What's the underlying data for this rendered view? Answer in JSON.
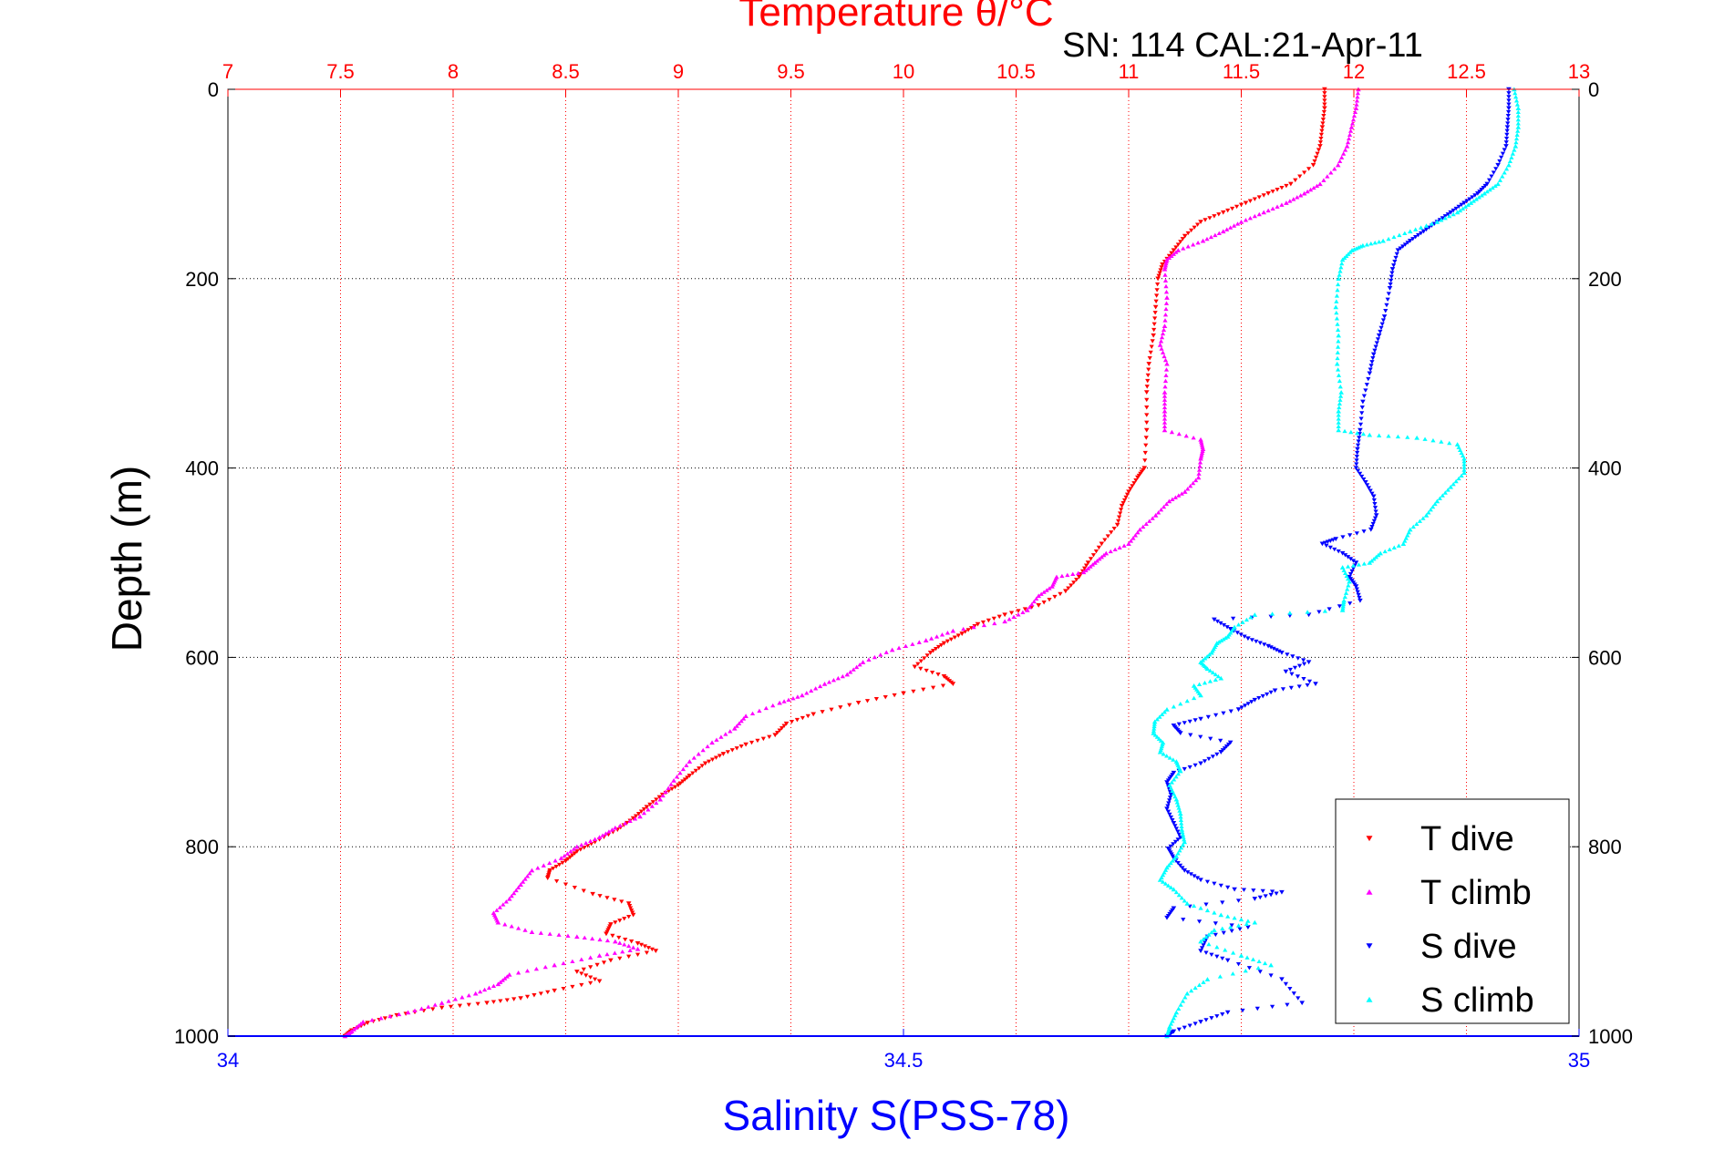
{
  "chart_data": {
    "type": "scatter",
    "title": "Temperature θ/°C",
    "subtitle": "SN: 114  CAL:21-Apr-11",
    "xlabel_top": "Temperature θ/°C",
    "xlabel_bottom": "Salinity S(PSS-78)",
    "ylabel": "Depth (m)",
    "top_axis": {
      "lim": [
        7,
        13
      ],
      "ticks": [
        "7",
        "7.5",
        "8",
        "8.5",
        "9",
        "9.5",
        "10",
        "10.5",
        "11",
        "11.5",
        "12",
        "12.5",
        "13"
      ],
      "color": "#ff0000"
    },
    "bottom_axis": {
      "lim": [
        34,
        35
      ],
      "ticks": [
        "34",
        "34.5",
        "35"
      ],
      "color": "#0000ff"
    },
    "y_axis": {
      "lim": [
        0,
        1000
      ],
      "reversed": true,
      "ticks": [
        "0",
        "200",
        "400",
        "600",
        "800",
        "1000"
      ]
    },
    "grid": true,
    "legend_position": "bottom-right",
    "series": [
      {
        "name": "T dive",
        "axis": "temperature",
        "color": "#ff0000",
        "marker": "triangle-down",
        "points": [
          [
            11.87,
            0
          ],
          [
            11.87,
            20
          ],
          [
            11.86,
            40
          ],
          [
            11.85,
            60
          ],
          [
            11.82,
            80
          ],
          [
            11.72,
            100
          ],
          [
            11.62,
            110
          ],
          [
            11.52,
            120
          ],
          [
            11.42,
            130
          ],
          [
            11.32,
            140
          ],
          [
            11.25,
            155
          ],
          [
            11.2,
            170
          ],
          [
            11.15,
            185
          ],
          [
            11.13,
            200
          ],
          [
            11.12,
            230
          ],
          [
            11.11,
            260
          ],
          [
            11.09,
            290
          ],
          [
            11.08,
            320
          ],
          [
            11.08,
            360
          ],
          [
            11.07,
            400
          ],
          [
            11.04,
            410
          ],
          [
            11.0,
            425
          ],
          [
            10.97,
            440
          ],
          [
            10.95,
            460
          ],
          [
            10.88,
            480
          ],
          [
            10.82,
            500
          ],
          [
            10.78,
            515
          ],
          [
            10.72,
            530
          ],
          [
            10.6,
            545
          ],
          [
            10.45,
            555
          ],
          [
            10.33,
            565
          ],
          [
            10.26,
            575
          ],
          [
            10.18,
            585
          ],
          [
            10.12,
            595
          ],
          [
            10.05,
            610
          ],
          [
            10.18,
            620
          ],
          [
            10.22,
            628
          ],
          [
            10.0,
            638
          ],
          [
            9.8,
            648
          ],
          [
            9.6,
            660
          ],
          [
            9.48,
            670
          ],
          [
            9.43,
            682
          ],
          [
            9.3,
            692
          ],
          [
            9.2,
            702
          ],
          [
            9.12,
            712
          ],
          [
            9.05,
            725
          ],
          [
            9.0,
            735
          ],
          [
            8.93,
            745
          ],
          [
            8.86,
            758
          ],
          [
            8.8,
            770
          ],
          [
            8.73,
            782
          ],
          [
            8.63,
            795
          ],
          [
            8.55,
            805
          ],
          [
            8.5,
            815
          ],
          [
            8.43,
            825
          ],
          [
            8.42,
            833
          ],
          [
            8.62,
            850
          ],
          [
            8.78,
            860
          ],
          [
            8.8,
            872
          ],
          [
            8.7,
            882
          ],
          [
            8.68,
            892
          ],
          [
            8.82,
            902
          ],
          [
            8.9,
            910
          ],
          [
            8.7,
            920
          ],
          [
            8.55,
            932
          ],
          [
            8.65,
            942
          ],
          [
            8.45,
            952
          ],
          [
            8.3,
            960
          ],
          [
            8.15,
            965
          ],
          [
            7.95,
            970
          ],
          [
            7.75,
            978
          ],
          [
            7.62,
            986
          ],
          [
            7.55,
            994
          ],
          [
            7.52,
            1000
          ]
        ]
      },
      {
        "name": "T climb",
        "axis": "temperature",
        "color": "#ff00ff",
        "marker": "triangle-up",
        "points": [
          [
            12.02,
            0
          ],
          [
            12.01,
            20
          ],
          [
            11.99,
            40
          ],
          [
            11.97,
            60
          ],
          [
            11.93,
            80
          ],
          [
            11.85,
            100
          ],
          [
            11.78,
            110
          ],
          [
            11.7,
            120
          ],
          [
            11.6,
            130
          ],
          [
            11.5,
            140
          ],
          [
            11.42,
            150
          ],
          [
            11.33,
            160
          ],
          [
            11.22,
            170
          ],
          [
            11.17,
            180
          ],
          [
            11.16,
            190
          ],
          [
            11.17,
            220
          ],
          [
            11.16,
            250
          ],
          [
            11.14,
            270
          ],
          [
            11.17,
            290
          ],
          [
            11.16,
            320
          ],
          [
            11.16,
            340
          ],
          [
            11.16,
            360
          ],
          [
            11.32,
            370
          ],
          [
            11.33,
            380
          ],
          [
            11.32,
            390
          ],
          [
            11.31,
            410
          ],
          [
            11.25,
            425
          ],
          [
            11.18,
            435
          ],
          [
            11.12,
            450
          ],
          [
            11.05,
            465
          ],
          [
            11.0,
            480
          ],
          [
            10.9,
            490
          ],
          [
            10.85,
            500
          ],
          [
            10.8,
            510
          ],
          [
            10.68,
            515
          ],
          [
            10.66,
            525
          ],
          [
            10.6,
            535
          ],
          [
            10.55,
            550
          ],
          [
            10.45,
            562
          ],
          [
            10.22,
            572
          ],
          [
            10.1,
            582
          ],
          [
            9.95,
            592
          ],
          [
            9.82,
            605
          ],
          [
            9.75,
            618
          ],
          [
            9.65,
            628
          ],
          [
            9.55,
            640
          ],
          [
            9.45,
            648
          ],
          [
            9.3,
            662
          ],
          [
            9.25,
            675
          ],
          [
            9.15,
            690
          ],
          [
            9.05,
            710
          ],
          [
            8.98,
            730
          ],
          [
            8.92,
            750
          ],
          [
            8.83,
            768
          ],
          [
            8.72,
            780
          ],
          [
            8.65,
            790
          ],
          [
            8.55,
            800
          ],
          [
            8.48,
            812
          ],
          [
            8.35,
            825
          ],
          [
            8.3,
            840
          ],
          [
            8.25,
            855
          ],
          [
            8.18,
            870
          ],
          [
            8.2,
            880
          ],
          [
            8.35,
            890
          ],
          [
            8.55,
            895
          ],
          [
            8.72,
            900
          ],
          [
            8.82,
            908
          ],
          [
            8.65,
            915
          ],
          [
            8.45,
            925
          ],
          [
            8.25,
            935
          ],
          [
            8.2,
            945
          ],
          [
            8.1,
            955
          ],
          [
            7.95,
            965
          ],
          [
            7.8,
            975
          ],
          [
            7.6,
            985
          ],
          [
            7.55,
            995
          ],
          [
            7.52,
            1000
          ]
        ]
      },
      {
        "name": "S dive",
        "axis": "salinity",
        "color": "#0000ff",
        "marker": "triangle-down",
        "points": [
          [
            34.948,
            0
          ],
          [
            34.948,
            20
          ],
          [
            34.947,
            40
          ],
          [
            34.946,
            60
          ],
          [
            34.94,
            80
          ],
          [
            34.932,
            100
          ],
          [
            34.925,
            110
          ],
          [
            34.915,
            120
          ],
          [
            34.905,
            130
          ],
          [
            34.895,
            140
          ],
          [
            34.885,
            150
          ],
          [
            34.875,
            160
          ],
          [
            34.866,
            170
          ],
          [
            34.862,
            190
          ],
          [
            34.86,
            210
          ],
          [
            34.856,
            240
          ],
          [
            34.852,
            260
          ],
          [
            34.848,
            280
          ],
          [
            34.845,
            300
          ],
          [
            34.84,
            330
          ],
          [
            34.838,
            360
          ],
          [
            34.836,
            380
          ],
          [
            34.835,
            400
          ],
          [
            34.842,
            415
          ],
          [
            34.848,
            430
          ],
          [
            34.85,
            450
          ],
          [
            34.846,
            465
          ],
          [
            34.82,
            475
          ],
          [
            34.81,
            480
          ],
          [
            34.825,
            490
          ],
          [
            34.835,
            500
          ],
          [
            34.83,
            515
          ],
          [
            34.835,
            525
          ],
          [
            34.838,
            540
          ],
          [
            34.8,
            555
          ],
          [
            34.73,
            560
          ],
          [
            34.742,
            570
          ],
          [
            34.755,
            580
          ],
          [
            34.77,
            588
          ],
          [
            34.78,
            595
          ],
          [
            34.8,
            605
          ],
          [
            34.783,
            615
          ],
          [
            34.805,
            628
          ],
          [
            34.775,
            635
          ],
          [
            34.76,
            645
          ],
          [
            34.748,
            655
          ],
          [
            34.72,
            665
          ],
          [
            34.7,
            672
          ],
          [
            34.705,
            680
          ],
          [
            34.742,
            690
          ],
          [
            34.735,
            700
          ],
          [
            34.72,
            712
          ],
          [
            34.7,
            722
          ],
          [
            34.695,
            732
          ],
          [
            34.698,
            745
          ],
          [
            34.695,
            760
          ],
          [
            34.7,
            775
          ],
          [
            34.705,
            790
          ],
          [
            34.696,
            802
          ],
          [
            34.7,
            812
          ],
          [
            34.708,
            825
          ],
          [
            34.72,
            835
          ],
          [
            34.745,
            845
          ],
          [
            34.78,
            848
          ],
          [
            34.76,
            855
          ],
          [
            34.7,
            865
          ],
          [
            34.695,
            875
          ],
          [
            34.755,
            885
          ],
          [
            34.725,
            895
          ],
          [
            34.72,
            910
          ],
          [
            34.74,
            920
          ],
          [
            34.78,
            940
          ],
          [
            34.795,
            965
          ],
          [
            34.74,
            975
          ],
          [
            34.72,
            985
          ],
          [
            34.7,
            995
          ],
          [
            34.695,
            1000
          ]
        ]
      },
      {
        "name": "S climb",
        "axis": "salinity",
        "color": "#00ffff",
        "marker": "triangle-up",
        "points": [
          [
            34.952,
            0
          ],
          [
            34.955,
            20
          ],
          [
            34.955,
            40
          ],
          [
            34.953,
            60
          ],
          [
            34.948,
            80
          ],
          [
            34.94,
            100
          ],
          [
            34.93,
            110
          ],
          [
            34.92,
            120
          ],
          [
            34.91,
            130
          ],
          [
            34.895,
            140
          ],
          [
            34.875,
            150
          ],
          [
            34.855,
            160
          ],
          [
            34.84,
            165
          ],
          [
            34.832,
            170
          ],
          [
            34.825,
            180
          ],
          [
            34.822,
            200
          ],
          [
            34.82,
            230
          ],
          [
            34.822,
            260
          ],
          [
            34.821,
            290
          ],
          [
            34.824,
            320
          ],
          [
            34.822,
            340
          ],
          [
            34.822,
            360
          ],
          [
            34.845,
            365
          ],
          [
            34.88,
            368
          ],
          [
            34.91,
            375
          ],
          [
            34.915,
            390
          ],
          [
            34.915,
            405
          ],
          [
            34.905,
            420
          ],
          [
            34.895,
            435
          ],
          [
            34.887,
            450
          ],
          [
            34.875,
            465
          ],
          [
            34.87,
            480
          ],
          [
            34.853,
            490
          ],
          [
            34.845,
            500
          ],
          [
            34.825,
            505
          ],
          [
            34.83,
            520
          ],
          [
            34.826,
            540
          ],
          [
            34.825,
            550
          ],
          [
            34.76,
            555
          ],
          [
            34.745,
            568
          ],
          [
            34.74,
            578
          ],
          [
            34.732,
            585
          ],
          [
            34.728,
            595
          ],
          [
            34.72,
            605
          ],
          [
            34.725,
            612
          ],
          [
            34.735,
            622
          ],
          [
            34.715,
            630
          ],
          [
            34.72,
            640
          ],
          [
            34.695,
            655
          ],
          [
            34.686,
            668
          ],
          [
            34.685,
            680
          ],
          [
            34.692,
            690
          ],
          [
            34.69,
            700
          ],
          [
            34.702,
            710
          ],
          [
            34.705,
            720
          ],
          [
            34.697,
            735
          ],
          [
            34.702,
            750
          ],
          [
            34.705,
            765
          ],
          [
            34.706,
            782
          ],
          [
            34.708,
            795
          ],
          [
            34.702,
            810
          ],
          [
            34.695,
            822
          ],
          [
            34.69,
            835
          ],
          [
            34.7,
            845
          ],
          [
            34.71,
            860
          ],
          [
            34.735,
            872
          ],
          [
            34.76,
            880
          ],
          [
            34.73,
            888
          ],
          [
            34.72,
            900
          ],
          [
            34.75,
            915
          ],
          [
            34.772,
            925
          ],
          [
            34.725,
            940
          ],
          [
            34.71,
            955
          ],
          [
            34.702,
            975
          ],
          [
            34.697,
            990
          ],
          [
            34.695,
            1000
          ]
        ]
      }
    ]
  }
}
